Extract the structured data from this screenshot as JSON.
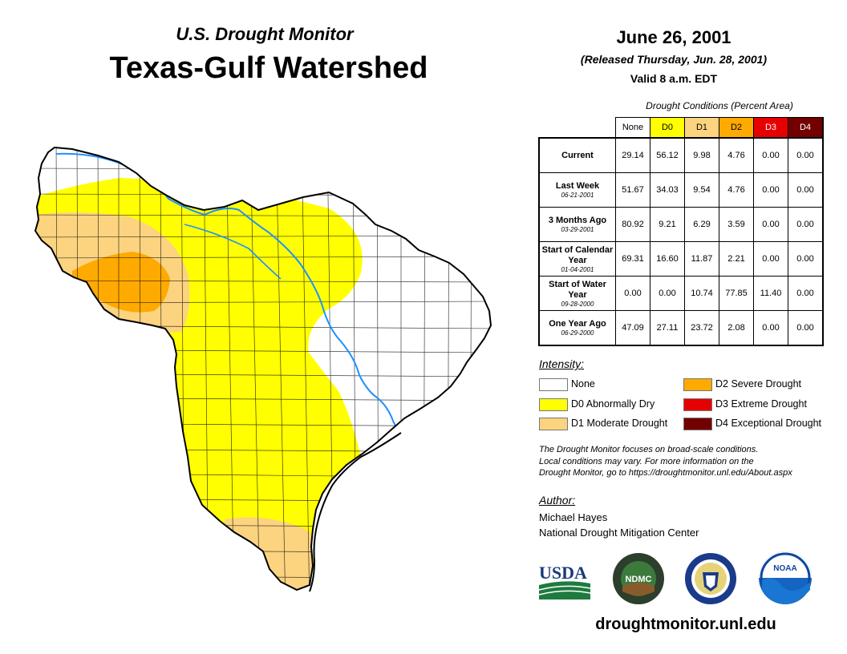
{
  "header": {
    "subtitle": "U.S. Drought Monitor",
    "title": "Texas-Gulf Watershed",
    "date": "June 26, 2001",
    "released": "(Released Thursday, Jun. 28, 2001)",
    "valid": "Valid 8 a.m. EDT"
  },
  "table": {
    "caption": "Drought Conditions (Percent Area)",
    "columns": [
      "None",
      "D0",
      "D1",
      "D2",
      "D3",
      "D4"
    ],
    "rows": [
      {
        "label": "Current",
        "date": "",
        "values": [
          "29.14",
          "56.12",
          "9.98",
          "4.76",
          "0.00",
          "0.00"
        ]
      },
      {
        "label": "Last Week",
        "date": "06-21-2001",
        "values": [
          "51.67",
          "34.03",
          "9.54",
          "4.76",
          "0.00",
          "0.00"
        ]
      },
      {
        "label": "3 Months Ago",
        "date": "03-29-2001",
        "values": [
          "80.92",
          "9.21",
          "6.29",
          "3.59",
          "0.00",
          "0.00"
        ]
      },
      {
        "label": "Start of Calendar Year",
        "date": "01-04-2001",
        "values": [
          "69.31",
          "16.60",
          "11.87",
          "2.21",
          "0.00",
          "0.00"
        ]
      },
      {
        "label": "Start of Water Year",
        "date": "09-28-2000",
        "values": [
          "0.00",
          "0.00",
          "10.74",
          "77.85",
          "11.40",
          "0.00"
        ]
      },
      {
        "label": "One Year Ago",
        "date": "06-29-2000",
        "values": [
          "47.09",
          "27.11",
          "23.72",
          "2.08",
          "0.00",
          "0.00"
        ]
      }
    ]
  },
  "legend": {
    "title": "Intensity:",
    "items": [
      {
        "label": "None",
        "color": "#ffffff"
      },
      {
        "label": "D0 Abnormally Dry",
        "color": "#ffff00"
      },
      {
        "label": "D1 Moderate Drought",
        "color": "#fcd37f"
      },
      {
        "label": "D2 Severe Drought",
        "color": "#ffaa00"
      },
      {
        "label": "D3 Extreme Drought",
        "color": "#e60000"
      },
      {
        "label": "D4 Exceptional Drought",
        "color": "#730000"
      }
    ]
  },
  "disclaimer": {
    "line1": "The Drought Monitor focuses on broad-scale conditions.",
    "line2": "Local conditions may vary. For more information on the",
    "line3": "Drought Monitor, go to https://droughtmonitor.unl.edu/About.aspx"
  },
  "author": {
    "heading": "Author:",
    "name": "Michael Hayes",
    "org": "National Drought Mitigation Center"
  },
  "logos": {
    "usda": "USDA",
    "ndmc": "NDMC",
    "noaa": "NOAA"
  },
  "footer": {
    "url": "droughtmonitor.unl.edu"
  }
}
